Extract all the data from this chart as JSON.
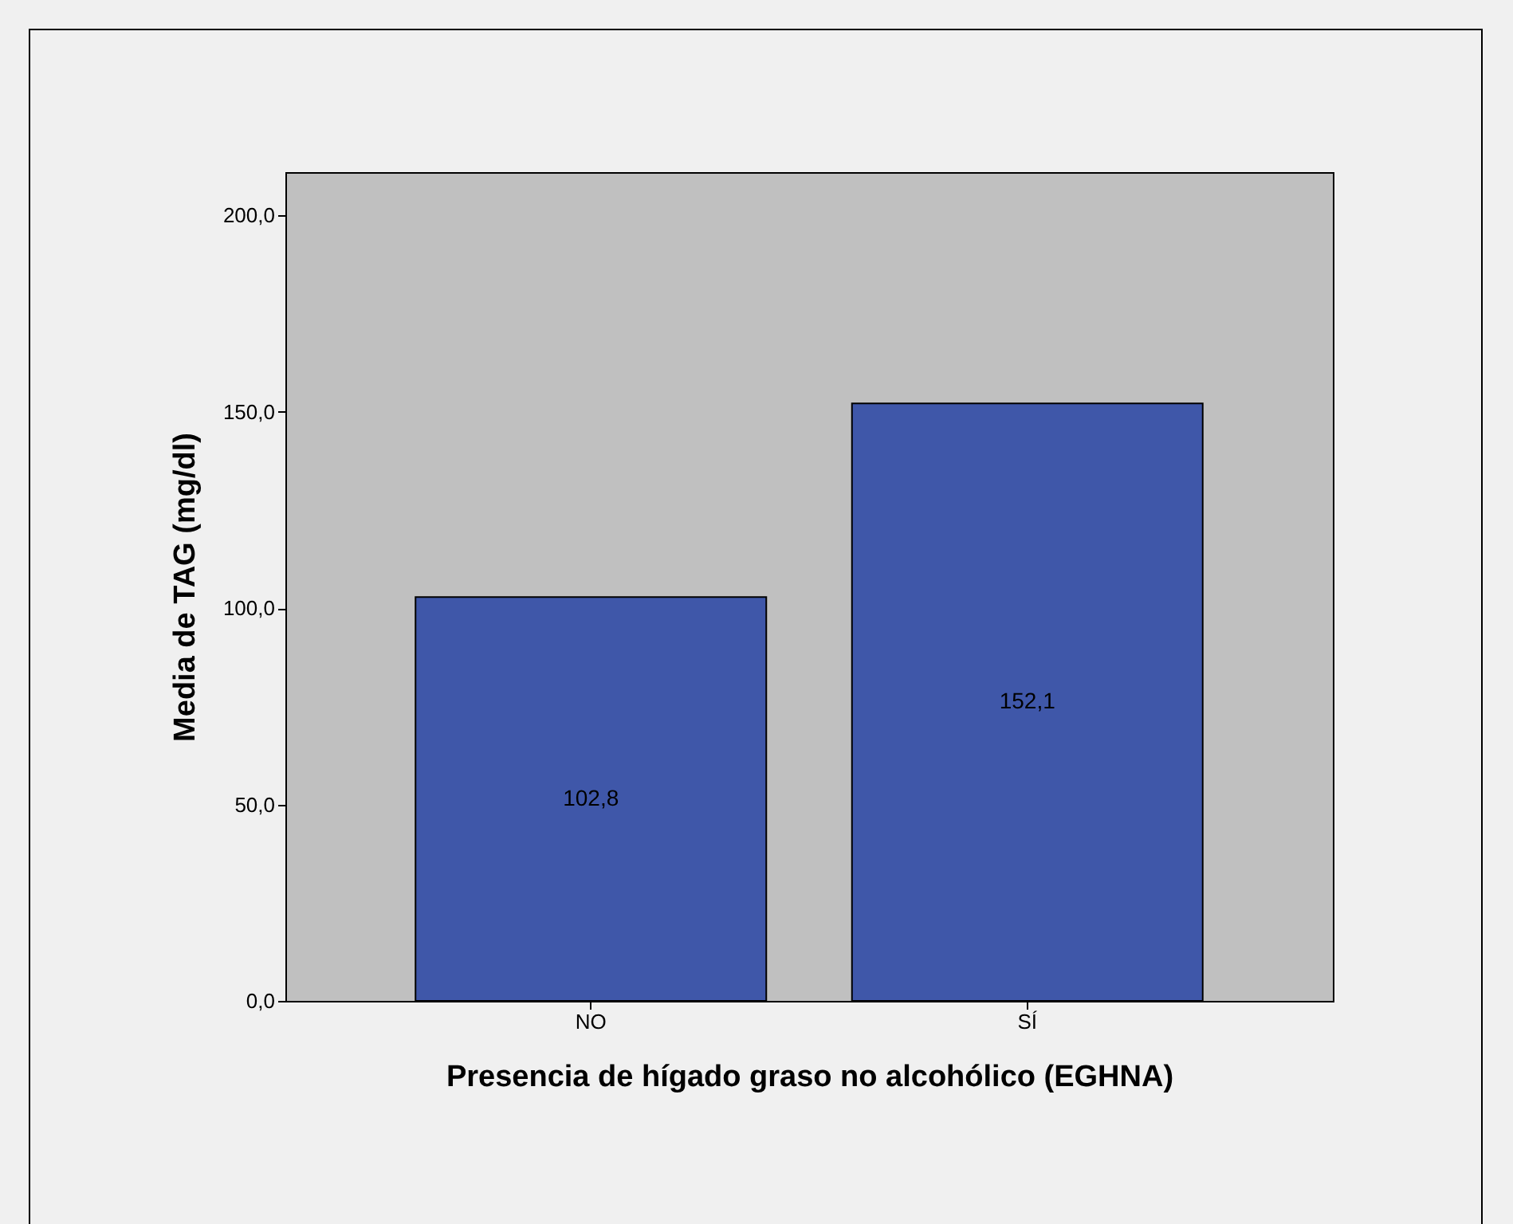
{
  "chart_data": {
    "type": "bar",
    "xlabel": "Presencia de hígado graso no alcohólico (EGHNA)",
    "ylabel": "Media de  TAG (mg/dl)",
    "categories": [
      "NO",
      "SÍ"
    ],
    "values": [
      102.8,
      152.1
    ],
    "value_labels": [
      "102,8",
      "152,1"
    ],
    "color": "#3f57a9",
    "ylim": [
      0,
      211
    ],
    "yticks": [
      {
        "value": 0,
        "label": "0,0"
      },
      {
        "value": 50,
        "label": "50,0"
      },
      {
        "value": 100,
        "label": "100,0"
      },
      {
        "value": 150,
        "label": "150,0"
      },
      {
        "value": 200,
        "label": "200,0"
      }
    ],
    "grid": false
  }
}
